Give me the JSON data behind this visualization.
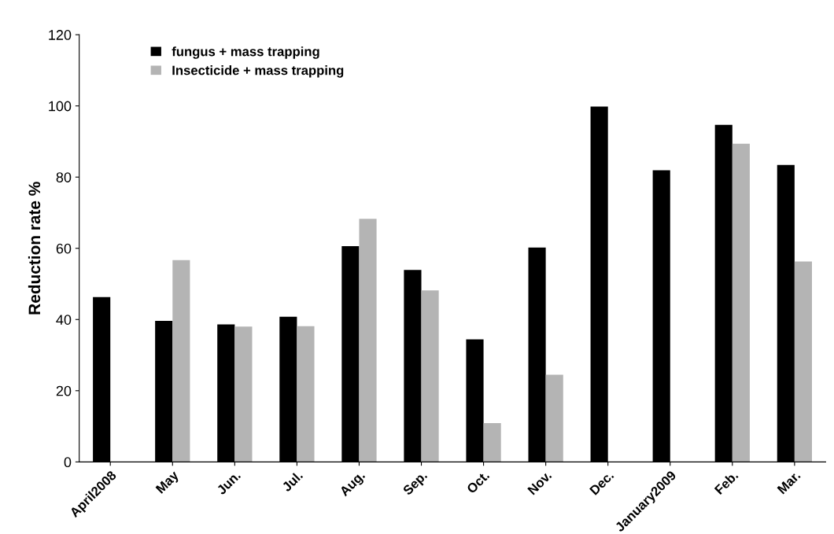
{
  "chart_data": {
    "type": "bar",
    "ylabel": "Reduction rate %",
    "categories": [
      "April2008",
      "May",
      "Jun.",
      "Jul.",
      "Aug.",
      "Sep.",
      "Oct.",
      "Nov.",
      "Dec.",
      "January2009",
      "Feb.",
      "Mar."
    ],
    "series": [
      {
        "name": "fungus + mass trapping",
        "color": "#000000",
        "values": [
          46.3,
          39.6,
          38.6,
          40.8,
          60.6,
          53.9,
          34.4,
          60.2,
          99.8,
          81.9,
          94.7,
          83.4
        ]
      },
      {
        "name": "Insecticide + mass trapping",
        "color": "#b4b4b4",
        "values": [
          null,
          56.7,
          38,
          38.1,
          68.3,
          48.2,
          10.9,
          24.5,
          null,
          null,
          89.4,
          56.3
        ]
      }
    ],
    "ylim": [
      0,
      120
    ],
    "yticks": [
      0,
      20,
      40,
      60,
      80,
      100,
      120
    ],
    "legend": "top left",
    "grid": false
  }
}
